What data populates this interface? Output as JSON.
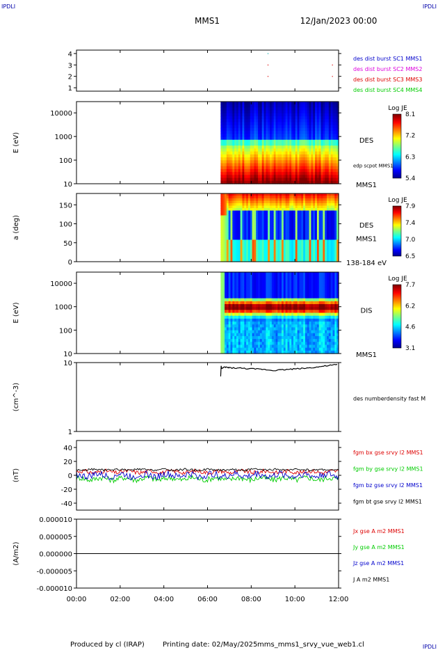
{
  "header": {
    "corner_tl": "IPDLI",
    "corner_tr": "IPDLI",
    "corner_br": "IPDLI",
    "mission": "MMS1",
    "datetime": "12/Jan/2023 00:00"
  },
  "footer": {
    "credit": "Produced by cl (IRAP)",
    "printing_date": "Printing date: 02/May/2025",
    "filename": "mms_mms1_srvy_vue_web1.cl"
  },
  "colors": {
    "blue": "#0000cc",
    "magenta": "#dd00dd",
    "red": "#dd0000",
    "green": "#00cc00",
    "black": "#000000"
  },
  "time_axis": {
    "ticks": [
      "00:00",
      "02:00",
      "04:00",
      "06:00",
      "08:00",
      "10:00",
      "12:00"
    ],
    "range_hours": [
      0,
      12
    ]
  },
  "chart_data": [
    {
      "id": "burst",
      "type": "scatter",
      "ylim": [
        0.7,
        4.3
      ],
      "yticks": [
        "1",
        "2",
        "3",
        "4"
      ],
      "legend": [
        {
          "text": "des dist burst SC1 MMS1",
          "color": "#0000cc"
        },
        {
          "text": "des dist burst SC2 MMS2",
          "color": "#dd00dd"
        },
        {
          "text": "des dist burst SC3 MMS3",
          "color": "#dd0000"
        },
        {
          "text": "des dist burst SC4 MMS4",
          "color": "#00cc00"
        }
      ],
      "points": [
        {
          "x": 8.75,
          "y": 4,
          "color": "#00aaaa"
        },
        {
          "x": 8.75,
          "y": 3,
          "color": "#dd0000"
        },
        {
          "x": 8.75,
          "y": 2,
          "color": "#dd0000"
        },
        {
          "x": 11.7,
          "y": 3,
          "color": "#dd0000"
        },
        {
          "x": 11.7,
          "y": 2,
          "color": "#dd0000"
        }
      ]
    },
    {
      "id": "des_energy",
      "type": "heatmap",
      "ylabel": "E (eV)",
      "yscale": "log",
      "ylim": [
        10,
        30000
      ],
      "yticks": [
        "10000",
        "1000",
        "100",
        "10"
      ],
      "data_start_hour": 6.6,
      "side_label": "DES",
      "side_small": "edp scpot MMS1",
      "side_bottom": "MMS1",
      "colorbar": {
        "title": "Log JE",
        "ticks": [
          "8.1",
          "7.2",
          "6.3",
          "5.4"
        ]
      }
    },
    {
      "id": "des_pitch",
      "type": "heatmap",
      "ylabel": "a (deg)",
      "ylim": [
        0,
        180
      ],
      "yticks": [
        "150",
        "100",
        "50",
        "0"
      ],
      "data_start_hour": 6.6,
      "side_label": "DES",
      "side_mid": "MMS1",
      "side_bottom": "138-184 eV",
      "colorbar": {
        "title": "Log JE",
        "ticks": [
          "7.9",
          "7.4",
          "7.0",
          "6.5"
        ]
      }
    },
    {
      "id": "dis_energy",
      "type": "heatmap",
      "ylabel": "E (eV)",
      "yscale": "log",
      "ylim": [
        10,
        30000
      ],
      "yticks": [
        "10000",
        "1000",
        "100",
        "10"
      ],
      "data_start_hour": 6.6,
      "side_label": "DIS",
      "side_bottom": "MMS1",
      "colorbar": {
        "title": "Log JE",
        "ticks": [
          "7.7",
          "6.2",
          "4.6",
          "3.1"
        ]
      }
    },
    {
      "id": "density",
      "type": "line",
      "ylabel": "(cm^-3)",
      "yscale": "log",
      "ylim": [
        1,
        10
      ],
      "yticks": [
        "10",
        "1"
      ],
      "legend": [
        {
          "text": "des numberdensity fast M",
          "color": "#000000"
        }
      ],
      "series": [
        {
          "name": "des numberdensity fast M",
          "color": "#000000",
          "x": [
            6.6,
            6.8,
            7.0,
            7.5,
            8.0,
            8.5,
            9.0,
            9.5,
            10.0,
            10.5,
            11.0,
            11.5,
            12.0
          ],
          "y": [
            8.0,
            8.6,
            8.4,
            8.3,
            8.1,
            8.0,
            7.7,
            7.9,
            8.1,
            8.3,
            8.6,
            9.0,
            9.4
          ]
        }
      ]
    },
    {
      "id": "magnetic",
      "type": "line",
      "ylabel": "(nT)",
      "ylim": [
        -50,
        50
      ],
      "yticks": [
        "40",
        "20",
        "0",
        "-20",
        "-40"
      ],
      "legend": [
        {
          "text": "fgm bx gse srvy l2 MMS1",
          "color": "#dd0000"
        },
        {
          "text": "fgm by gse srvy l2 MMS1",
          "color": "#00cc00"
        },
        {
          "text": "fgm bz gse srvy l2 MMS1",
          "color": "#0000cc"
        },
        {
          "text": "fgm bt gse srvy l2 MMS1",
          "color": "#000000"
        }
      ],
      "series": [
        {
          "name": "bx",
          "color": "#dd0000",
          "mean": 5,
          "amp": 3
        },
        {
          "name": "by",
          "color": "#00cc00",
          "mean": -5,
          "amp": 4
        },
        {
          "name": "bz",
          "color": "#0000cc",
          "mean": 0,
          "amp": 5
        },
        {
          "name": "bt",
          "color": "#000000",
          "mean": 8,
          "amp": 1.5
        }
      ]
    },
    {
      "id": "current",
      "type": "line",
      "ylabel": "(A/m2)",
      "ylim": [
        -1e-05,
        1e-05
      ],
      "yticks": [
        "0.000010",
        "0.000005",
        "0.000000",
        "-0.000005",
        "-0.000010"
      ],
      "legend": [
        {
          "text": "Jx gse A m2 MMS1",
          "color": "#dd0000"
        },
        {
          "text": "Jy gse A m2 MMS1",
          "color": "#00cc00"
        },
        {
          "text": "Jz gse A m2 MMS1",
          "color": "#0000cc"
        },
        {
          "text": "J A m2 MMS1",
          "color": "#000000"
        }
      ],
      "series": [
        {
          "name": "J",
          "color": "#000000",
          "mean": 0,
          "amp": 0
        }
      ]
    }
  ]
}
